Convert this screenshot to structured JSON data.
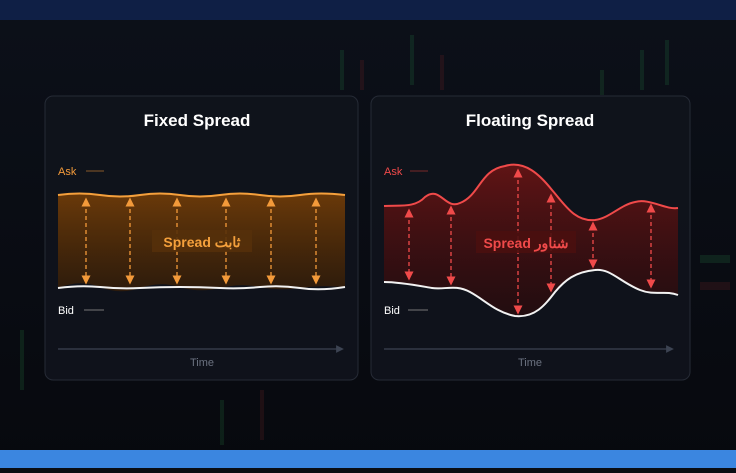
{
  "panels": [
    {
      "title": "Fixed Spread",
      "ask_label": "Ask",
      "bid_label": "Bid",
      "spread_label": "Spread ثابت",
      "time_label": "Time"
    },
    {
      "title": "Floating Spread",
      "ask_label": "Ask",
      "bid_label": "Bid",
      "spread_label": "Spread شناور",
      "time_label": "Time"
    }
  ]
}
